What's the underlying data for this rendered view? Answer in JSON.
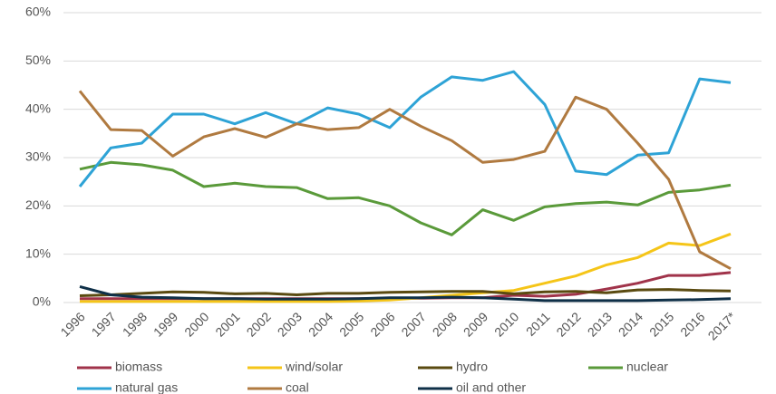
{
  "chart_data": {
    "type": "line",
    "categories": [
      "1996",
      "1997",
      "1998",
      "1999",
      "2000",
      "2001",
      "2002",
      "2003",
      "2004",
      "2005",
      "2006",
      "2007",
      "2008",
      "2009",
      "2010",
      "2011",
      "2012",
      "2013",
      "2014",
      "2015",
      "2016",
      "2017*"
    ],
    "ylim": [
      0,
      60
    ],
    "yticks": [
      {
        "value": 0,
        "label": "0%"
      },
      {
        "value": 10,
        "label": "10%"
      },
      {
        "value": 20,
        "label": "20%"
      },
      {
        "value": 30,
        "label": "30%"
      },
      {
        "value": 40,
        "label": "40%"
      },
      {
        "value": 50,
        "label": "50%"
      },
      {
        "value": 60,
        "label": "60%"
      }
    ],
    "grid": true,
    "legend": "bottom",
    "series": [
      {
        "name": "biomass",
        "color": "#a0334a",
        "values": [
          0.8,
          0.8,
          0.8,
          0.8,
          0.8,
          0.8,
          0.8,
          0.8,
          0.8,
          0.8,
          0.9,
          0.9,
          1.0,
          1.0,
          1.5,
          1.3,
          1.7,
          2.8,
          4.0,
          5.6,
          5.6,
          6.2
        ]
      },
      {
        "name": "wind/solar",
        "color": "#f5c518",
        "values": [
          0.2,
          0.2,
          0.2,
          0.2,
          0.2,
          0.2,
          0.2,
          0.2,
          0.2,
          0.3,
          0.5,
          1.0,
          1.5,
          2.0,
          2.5,
          4.0,
          5.5,
          7.8,
          9.3,
          12.3,
          11.8,
          14.2
        ]
      },
      {
        "name": "hydro",
        "color": "#5a4a10",
        "values": [
          1.4,
          1.6,
          1.9,
          2.2,
          2.1,
          1.8,
          1.9,
          1.6,
          1.9,
          1.9,
          2.1,
          2.2,
          2.3,
          2.3,
          1.8,
          2.2,
          2.3,
          2.0,
          2.6,
          2.7,
          2.5,
          2.4
        ]
      },
      {
        "name": "nuclear",
        "color": "#5a9a3a",
        "values": [
          27.6,
          29.0,
          28.5,
          27.4,
          24.0,
          24.7,
          24.0,
          23.8,
          21.5,
          21.7,
          20.0,
          16.5,
          14.0,
          19.2,
          17.0,
          19.8,
          20.5,
          20.8,
          20.2,
          22.8,
          23.3,
          24.3
        ]
      },
      {
        "name": "natural gas",
        "color": "#2ea3d6",
        "values": [
          24.0,
          32.0,
          33.0,
          39.0,
          39.0,
          37.0,
          39.3,
          37.0,
          40.3,
          39.0,
          36.2,
          42.5,
          46.7,
          46.0,
          47.8,
          41.0,
          27.2,
          26.5,
          30.5,
          31.0,
          46.3,
          45.5
        ]
      },
      {
        "name": "coal",
        "color": "#b07a40",
        "values": [
          43.8,
          35.8,
          35.6,
          30.3,
          34.3,
          36.0,
          34.2,
          37.0,
          35.8,
          36.2,
          40.0,
          36.5,
          33.5,
          29.0,
          29.6,
          31.3,
          42.5,
          40.0,
          33.0,
          25.5,
          10.5,
          7.0
        ]
      },
      {
        "name": "oil and other",
        "color": "#0f3048",
        "values": [
          3.3,
          1.6,
          1.1,
          1.0,
          0.8,
          0.8,
          0.7,
          0.7,
          0.7,
          0.8,
          1.0,
          1.0,
          1.1,
          1.0,
          0.7,
          0.4,
          0.4,
          0.4,
          0.4,
          0.5,
          0.6,
          0.8
        ]
      }
    ]
  }
}
